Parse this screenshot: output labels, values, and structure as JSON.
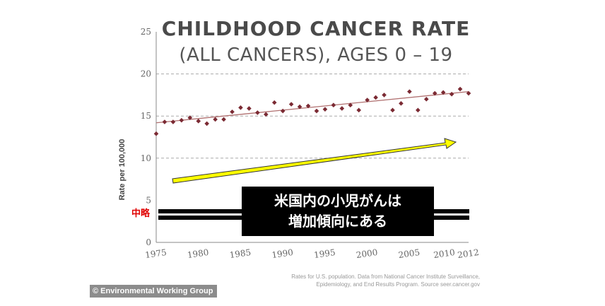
{
  "chart_data": {
    "type": "scatter",
    "title": "CHILDHOOD CANCER RATE",
    "subtitle": "(ALL CANCERS), AGES 0 – 19",
    "ylabel": "Rate per 100,000",
    "xlabel": "",
    "xlim": [
      1975,
      2012
    ],
    "ylim": [
      0,
      25
    ],
    "x_ticks": [
      "1975",
      "1980",
      "1985",
      "1990",
      "1995",
      "2000",
      "2005",
      "2010",
      "2012"
    ],
    "y_ticks": [
      "0",
      "5",
      "10",
      "15",
      "20",
      "25"
    ],
    "grid": "horizontal dashed at 10, 15, 20",
    "point_color": "#7b2a33",
    "trend_color": "#b07070",
    "points": [
      {
        "x": 1975,
        "y": 12.9
      },
      {
        "x": 1976,
        "y": 14.3
      },
      {
        "x": 1977,
        "y": 14.3
      },
      {
        "x": 1978,
        "y": 14.5
      },
      {
        "x": 1979,
        "y": 14.8
      },
      {
        "x": 1980,
        "y": 14.4
      },
      {
        "x": 1981,
        "y": 14.1
      },
      {
        "x": 1982,
        "y": 14.6
      },
      {
        "x": 1983,
        "y": 14.6
      },
      {
        "x": 1984,
        "y": 15.5
      },
      {
        "x": 1985,
        "y": 16.0
      },
      {
        "x": 1986,
        "y": 15.9
      },
      {
        "x": 1987,
        "y": 15.4
      },
      {
        "x": 1988,
        "y": 15.2
      },
      {
        "x": 1989,
        "y": 16.6
      },
      {
        "x": 1990,
        "y": 15.6
      },
      {
        "x": 1991,
        "y": 16.4
      },
      {
        "x": 1992,
        "y": 16.1
      },
      {
        "x": 1993,
        "y": 16.2
      },
      {
        "x": 1994,
        "y": 15.6
      },
      {
        "x": 1995,
        "y": 15.8
      },
      {
        "x": 1996,
        "y": 16.3
      },
      {
        "x": 1997,
        "y": 15.9
      },
      {
        "x": 1998,
        "y": 16.3
      },
      {
        "x": 1999,
        "y": 15.7
      },
      {
        "x": 2000,
        "y": 16.9
      },
      {
        "x": 2001,
        "y": 17.2
      },
      {
        "x": 2002,
        "y": 17.5
      },
      {
        "x": 2003,
        "y": 15.7
      },
      {
        "x": 2004,
        "y": 16.5
      },
      {
        "x": 2005,
        "y": 17.9
      },
      {
        "x": 2006,
        "y": 15.7
      },
      {
        "x": 2007,
        "y": 17.0
      },
      {
        "x": 2008,
        "y": 17.7
      },
      {
        "x": 2009,
        "y": 17.8
      },
      {
        "x": 2010,
        "y": 17.6
      },
      {
        "x": 2011,
        "y": 18.2
      },
      {
        "x": 2012,
        "y": 17.7
      }
    ],
    "trend": {
      "x": [
        1975,
        2012
      ],
      "y": [
        14.2,
        17.9
      ]
    },
    "source": [
      "Rates for U.S. population. Data from National Cancer Institute Surveillance,",
      "Epidemiology, and End Results Program. Source seer.cancer.gov"
    ]
  },
  "annotation": {
    "callout_lines": [
      "米国内の小児がんは",
      "増加傾向にある"
    ],
    "break_label": "中略",
    "arrow_color": "#ffff00",
    "callout_bg": "#000000",
    "break_color": "#e00000"
  },
  "copyright": "© Environmental Working Group"
}
